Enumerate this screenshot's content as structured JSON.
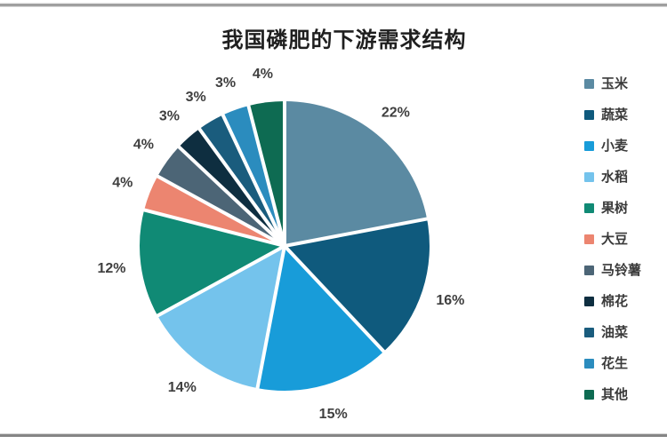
{
  "page": {
    "background": "#ffffff",
    "top_rule_color": "#8a8a8a",
    "bottom_rule_color": "#858585"
  },
  "chart_data": {
    "type": "pie",
    "title": "我国磷肥的下游需求结构",
    "unit": "%",
    "start_angle_deg": 0,
    "direction": "clockwise",
    "legend_position": "right",
    "categories": [
      "玉米",
      "蔬菜",
      "小麦",
      "水稻",
      "果树",
      "大豆",
      "马铃薯",
      "棉花",
      "油菜",
      "花生",
      "其他"
    ],
    "values": [
      22,
      16,
      15,
      14,
      12,
      4,
      4,
      3,
      3,
      3,
      4
    ],
    "labels": [
      "22%",
      "16%",
      "15%",
      "14%",
      "12%",
      "4%",
      "4%",
      "3%",
      "3%",
      "3%",
      "4%"
    ],
    "colors": [
      "#5b8aa2",
      "#0f5a7d",
      "#189cd9",
      "#74c3ec",
      "#108a75",
      "#ec8570",
      "#4c6576",
      "#0e2e40",
      "#1a5c7d",
      "#2b8cbe",
      "#0e6b52"
    ],
    "separator_color": "#ffffff",
    "label_color": "#3f3f3f",
    "title_color": "#1f1f1f"
  }
}
